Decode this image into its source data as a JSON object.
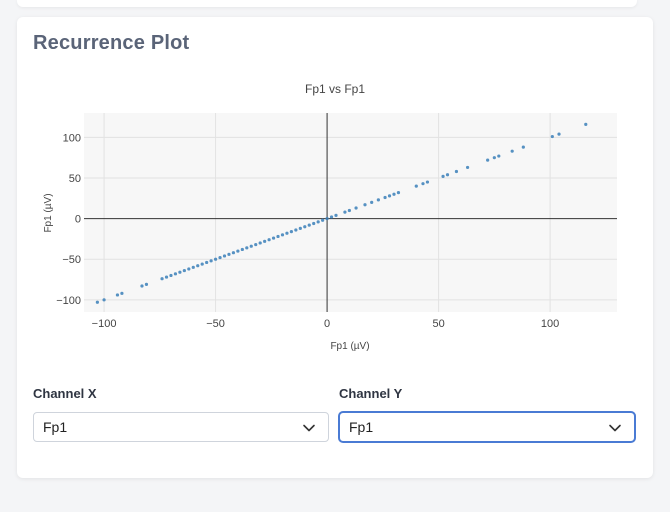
{
  "card": {
    "title": "Recurrence Plot"
  },
  "chart_data": {
    "type": "scatter",
    "title": "Fp1 vs Fp1",
    "xlabel": "Fp1 (µV)",
    "ylabel": "Fp1 (µV)",
    "xlim": [
      -109,
      130
    ],
    "ylim": [
      -115,
      130
    ],
    "xticks": [
      -100,
      -50,
      0,
      50,
      100
    ],
    "yticks": [
      -100,
      -50,
      0,
      50,
      100
    ],
    "xtick_labels": [
      "−100",
      "−50",
      "0",
      "50",
      "100"
    ],
    "ytick_labels": [
      "−100",
      "−50",
      "0",
      "50",
      "100"
    ],
    "grid": true,
    "marker_color": "#3a7fb8",
    "series": [
      {
        "x": [
          -103,
          -100,
          -94,
          -92,
          -83,
          -81,
          -74,
          -72,
          -70,
          -68,
          -66,
          -64,
          -62,
          -60,
          -58,
          -56,
          -54,
          -52,
          -50,
          -48,
          -46,
          -44,
          -42,
          -40,
          -38,
          -36,
          -34,
          -32,
          -30,
          -28,
          -26,
          -24,
          -22,
          -20,
          -18,
          -16,
          -14,
          -12,
          -10,
          -8,
          -6,
          -4,
          -2,
          0,
          2,
          4,
          8,
          10,
          13,
          17,
          20,
          23,
          26,
          28,
          30,
          32,
          40,
          43,
          45,
          52,
          54,
          58,
          63,
          72,
          75,
          77,
          83,
          88,
          101,
          104,
          116
        ],
        "y": [
          -103,
          -100,
          -94,
          -92,
          -83,
          -81,
          -74,
          -72,
          -70,
          -68,
          -66,
          -64,
          -62,
          -60,
          -58,
          -56,
          -54,
          -52,
          -50,
          -48,
          -46,
          -44,
          -42,
          -40,
          -38,
          -36,
          -34,
          -32,
          -30,
          -28,
          -26,
          -24,
          -22,
          -20,
          -18,
          -16,
          -14,
          -12,
          -10,
          -8,
          -6,
          -4,
          -2,
          0,
          2,
          4,
          8,
          10,
          13,
          17,
          20,
          23,
          26,
          28,
          30,
          32,
          40,
          43,
          45,
          52,
          54,
          58,
          63,
          72,
          75,
          77,
          83,
          88,
          101,
          104,
          116
        ]
      }
    ]
  },
  "controls": {
    "channel_x": {
      "label": "Channel X",
      "value": "Fp1"
    },
    "channel_y": {
      "label": "Channel Y",
      "value": "Fp1"
    }
  }
}
